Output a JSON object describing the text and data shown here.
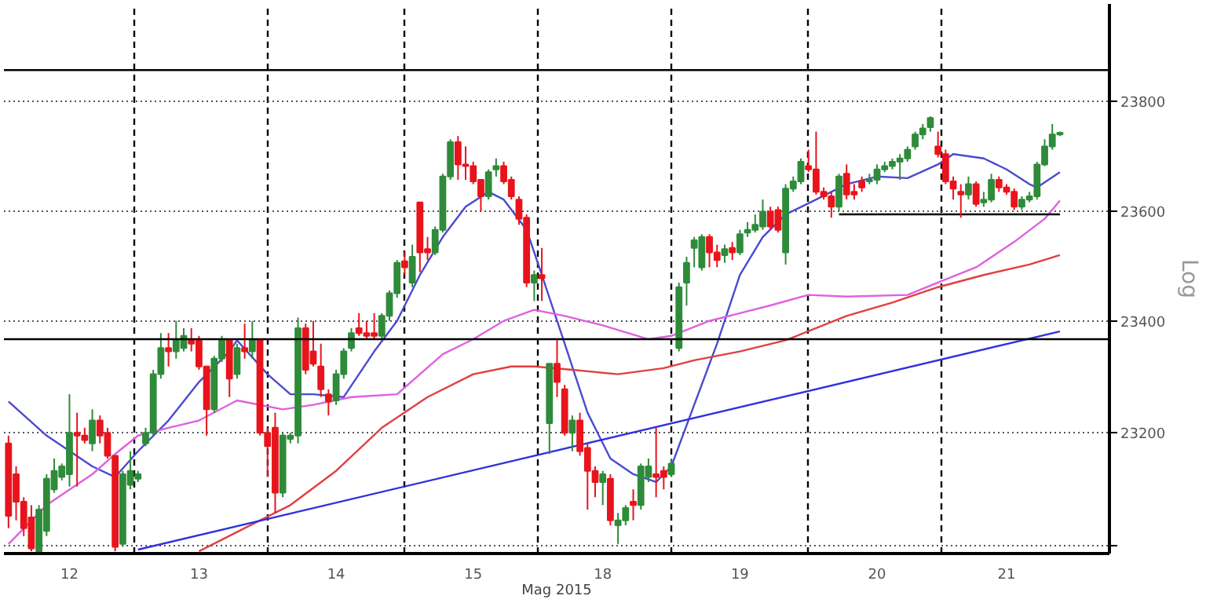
{
  "chart_data": {
    "type": "candlestick",
    "xlabel": "Mag 2015",
    "ylabel": "Log",
    "log": true,
    "grid": true,
    "ylim": [
      22985,
      23980
    ],
    "yticks": [
      {
        "value": 23000,
        "label": null
      },
      23200,
      23400,
      23600,
      23800
    ],
    "categories": [
      null,
      null,
      null,
      null,
      null,
      null,
      null,
      null,
      "12",
      null,
      null,
      null,
      null,
      null,
      null,
      null,
      null,
      null,
      null,
      null,
      null,
      null,
      null,
      null,
      null,
      "13",
      null,
      null,
      null,
      null,
      null,
      null,
      null,
      null,
      null,
      null,
      null,
      null,
      null,
      null,
      null,
      null,
      null,
      "14",
      null,
      null,
      null,
      null,
      null,
      null,
      null,
      null,
      null,
      null,
      null,
      null,
      null,
      null,
      null,
      null,
      null,
      "15",
      null,
      null,
      null,
      null,
      null,
      null,
      null,
      null,
      null,
      null,
      null,
      null,
      null,
      null,
      null,
      null,
      "18",
      null,
      null,
      null,
      null,
      null,
      null,
      null,
      null,
      null,
      null,
      null,
      null,
      null,
      null,
      null,
      null,
      null,
      "19",
      null,
      null,
      null,
      null,
      null,
      null,
      null,
      null,
      null,
      null,
      null,
      null,
      null,
      null,
      null,
      null,
      null,
      "20",
      null,
      null,
      null,
      null,
      null,
      null,
      null,
      null,
      null,
      null,
      null,
      null,
      null,
      null,
      null,
      null,
      "21",
      null,
      null,
      null,
      null,
      null,
      null,
      null
    ],
    "colors": [
      "#e8141c",
      "#e8141c",
      "#e8141c",
      "#e8141c",
      "#2e8b3a",
      "#2e8b3a",
      "#2e8b3a",
      "#2e8b3a",
      "#2e8b3a",
      "#e8141c",
      "#e8141c",
      "#2e8b3a",
      "#e8141c",
      "#e8141c",
      "#e8141c",
      "#2e8b3a",
      "#2e8b3a",
      "#2e8b3a",
      "#2e8b3a",
      "#2e8b3a",
      "#2e8b3a",
      "#e8141c",
      "#2e8b3a",
      "#2e8b3a",
      "#e8141c",
      "#e8141c",
      "#e8141c",
      "#2e8b3a",
      "#2e8b3a",
      "#e8141c",
      "#2e8b3a",
      "#e8141c",
      "#2e8b3a",
      "#e8141c",
      "#e8141c",
      "#e8141c",
      "#2e8b3a",
      "#2e8b3a",
      "#2e8b3a",
      "#e8141c",
      "#e8141c",
      "#e8141c",
      "#e8141c",
      "#2e8b3a",
      "#2e8b3a",
      "#2e8b3a",
      "#e8141c",
      "#e8141c",
      "#e8141c",
      "#2e8b3a",
      "#2e8b3a",
      "#2e8b3a",
      "#e8141c",
      "#2e8b3a",
      "#e8141c",
      "#e8141c",
      "#2e8b3a",
      "#2e8b3a",
      "#2e8b3a",
      "#e8141c",
      "#e8141c",
      "#e8141c",
      "#e8141c",
      "#2e8b3a",
      "#2e8b3a",
      "#e8141c",
      "#e8141c",
      "#e8141c",
      "#e8141c",
      "#2e8b3a",
      "#e8141c",
      "#2e8b3a",
      "#e8141c",
      "#e8141c",
      "#2e8b3a",
      "#e8141c",
      "#e8141c",
      "#e8141c",
      "#2e8b3a",
      "#e8141c",
      "#2e8b3a",
      "#2e8b3a",
      "#e8141c",
      "#2e8b3a",
      "#2e8b3a",
      "#e8141c",
      "#e8141c",
      "#2e8b3a",
      "#2e8b3a",
      "#2e8b3a",
      "#2e8b3a",
      "#2e8b3a",
      "#e8141c",
      "#e8141c",
      "#2e8b3a",
      "#e8141c",
      "#2e8b3a",
      "#2e8b3a",
      "#2e8b3a",
      "#2e8b3a",
      "#e8141c",
      "#e8141c",
      "#2e8b3a",
      "#2e8b3a",
      "#2e8b3a",
      "#e8141c",
      "#e8141c",
      "#e8141c",
      "#e8141c",
      "#2e8b3a",
      "#e8141c",
      "#e8141c",
      "#e8141c",
      "#2e8b3a",
      "#2e8b3a",
      "#2e8b3a",
      "#2e8b3a",
      "#2e8b3a",
      "#2e8b3a",
      "#2e8b3a",
      "#2e8b3a",
      "#2e8b3a",
      "#e8141c",
      "#e8141c",
      "#e8141c",
      "#e8141c",
      "#2e8b3a",
      "#e8141c",
      "#2e8b3a",
      "#2e8b3a",
      "#e8141c",
      "#e8141c",
      "#e8141c",
      "#2e8b3a",
      "#2e8b3a",
      "#2e8b3a",
      "#2e8b3a",
      "#2e8b3a",
      "#2e8b3a"
    ],
    "ohlc": [
      [
        23181,
        23195,
        23030,
        23052
      ],
      [
        23126,
        23140,
        23044,
        23077
      ],
      [
        23077,
        23085,
        23016,
        23030
      ],
      [
        23049,
        23071,
        22989,
        22994
      ],
      [
        22989,
        23071,
        22989,
        23063
      ],
      [
        23025,
        23126,
        23016,
        23118
      ],
      [
        23099,
        23154,
        23093,
        23132
      ],
      [
        23121,
        23145,
        23115,
        23140
      ],
      [
        23126,
        23269,
        23104,
        23200
      ],
      [
        23200,
        23236,
        23104,
        23195
      ],
      [
        23195,
        23209,
        23181,
        23187
      ],
      [
        23181,
        23242,
        23167,
        23222
      ],
      [
        23222,
        23231,
        23181,
        23195
      ],
      [
        23200,
        23209,
        23154,
        23159
      ],
      [
        23159,
        23159,
        22989,
        22997
      ],
      [
        23002,
        23132,
        22997,
        23126
      ],
      [
        23107,
        23167,
        23099,
        23132
      ],
      [
        23118,
        23132,
        23112,
        23126
      ],
      [
        23181,
        23209,
        23176,
        23200
      ],
      [
        23200,
        23313,
        23195,
        23305
      ],
      [
        23305,
        23379,
        23297,
        23352
      ],
      [
        23352,
        23379,
        23319,
        23346
      ],
      [
        23346,
        23401,
        23333,
        23366
      ],
      [
        23352,
        23388,
        23346,
        23374
      ],
      [
        23368,
        23388,
        23346,
        23360
      ],
      [
        23368,
        23374,
        23313,
        23319
      ],
      [
        23319,
        23319,
        23195,
        23242
      ],
      [
        23242,
        23338,
        23236,
        23333
      ],
      [
        23333,
        23374,
        23327,
        23368
      ],
      [
        23368,
        23368,
        23264,
        23297
      ],
      [
        23305,
        23360,
        23297,
        23352
      ],
      [
        23352,
        23396,
        23333,
        23346
      ],
      [
        23346,
        23401,
        23333,
        23368
      ],
      [
        23368,
        23368,
        23195,
        23200
      ],
      [
        23200,
        23209,
        23121,
        23176
      ],
      [
        23209,
        23236,
        23057,
        23093
      ],
      [
        23093,
        23200,
        23085,
        23195
      ],
      [
        23189,
        23200,
        23181,
        23195
      ],
      [
        23195,
        23407,
        23181,
        23388
      ],
      [
        23388,
        23396,
        23305,
        23313
      ],
      [
        23346,
        23401,
        23319,
        23324
      ],
      [
        23319,
        23360,
        23264,
        23278
      ],
      [
        23269,
        23278,
        23231,
        23256
      ],
      [
        23258,
        23313,
        23250,
        23305
      ],
      [
        23305,
        23352,
        23297,
        23346
      ],
      [
        23352,
        23388,
        23346,
        23379
      ],
      [
        23388,
        23415,
        23374,
        23379
      ],
      [
        23379,
        23401,
        23368,
        23374
      ],
      [
        23379,
        23415,
        23368,
        23374
      ],
      [
        23374,
        23415,
        23368,
        23410
      ],
      [
        23410,
        23456,
        23401,
        23451
      ],
      [
        23451,
        23511,
        23443,
        23506
      ],
      [
        23509,
        23525,
        23484,
        23498
      ],
      [
        23470,
        23539,
        23462,
        23517
      ],
      [
        23616,
        23616,
        23489,
        23525
      ],
      [
        23531,
        23553,
        23511,
        23525
      ],
      [
        23525,
        23572,
        23520,
        23566
      ],
      [
        23566,
        23668,
        23561,
        23663
      ],
      [
        23663,
        23731,
        23657,
        23726
      ],
      [
        23726,
        23737,
        23657,
        23685
      ],
      [
        23685,
        23718,
        23657,
        23682
      ],
      [
        23682,
        23690,
        23649,
        23654
      ],
      [
        23657,
        23657,
        23599,
        23627
      ],
      [
        23627,
        23676,
        23621,
        23671
      ],
      [
        23676,
        23696,
        23663,
        23682
      ],
      [
        23682,
        23690,
        23649,
        23654
      ],
      [
        23657,
        23663,
        23621,
        23627
      ],
      [
        23621,
        23627,
        23575,
        23586
      ],
      [
        23588,
        23594,
        23462,
        23470
      ],
      [
        23470,
        23492,
        23437,
        23484
      ],
      [
        23484,
        23533,
        23437,
        23478
      ],
      [
        23217,
        23324,
        23162,
        23324
      ],
      [
        23324,
        23368,
        23264,
        23291
      ],
      [
        23278,
        23286,
        23195,
        23200
      ],
      [
        23200,
        23231,
        23167,
        23222
      ],
      [
        23222,
        23236,
        23159,
        23167
      ],
      [
        23173,
        23181,
        23063,
        23132
      ],
      [
        23132,
        23140,
        23085,
        23112
      ],
      [
        23112,
        23132,
        23071,
        23126
      ],
      [
        23118,
        23126,
        23035,
        23044
      ],
      [
        23035,
        23057,
        23002,
        23044
      ],
      [
        23044,
        23071,
        23035,
        23066
      ],
      [
        23077,
        23099,
        23044,
        23071
      ],
      [
        23071,
        23145,
        23063,
        23140
      ],
      [
        23121,
        23154,
        23112,
        23140
      ],
      [
        23126,
        23209,
        23085,
        23121
      ],
      [
        23132,
        23140,
        23099,
        23121
      ],
      [
        23126,
        23154,
        23121,
        23145
      ],
      [
        23352,
        23470,
        23346,
        23462
      ],
      [
        23470,
        23517,
        23429,
        23506
      ],
      [
        23533,
        23553,
        23498,
        23547
      ],
      [
        23498,
        23558,
        23492,
        23553
      ],
      [
        23553,
        23558,
        23498,
        23525
      ],
      [
        23525,
        23539,
        23498,
        23511
      ],
      [
        23520,
        23539,
        23506,
        23531
      ],
      [
        23533,
        23544,
        23511,
        23525
      ],
      [
        23525,
        23566,
        23520,
        23558
      ],
      [
        23561,
        23580,
        23553,
        23566
      ],
      [
        23566,
        23594,
        23561,
        23575
      ],
      [
        23572,
        23621,
        23566,
        23599
      ],
      [
        23599,
        23608,
        23566,
        23572
      ],
      [
        23602,
        23608,
        23561,
        23566
      ],
      [
        23525,
        23649,
        23503,
        23641
      ],
      [
        23641,
        23663,
        23635,
        23654
      ],
      [
        23654,
        23696,
        23649,
        23690
      ],
      [
        23682,
        23712,
        23671,
        23676
      ],
      [
        23676,
        23745,
        23630,
        23635
      ],
      [
        23635,
        23643,
        23621,
        23627
      ],
      [
        23627,
        23635,
        23588,
        23608
      ],
      [
        23608,
        23668,
        23599,
        23663
      ],
      [
        23668,
        23685,
        23621,
        23630
      ],
      [
        23635,
        23649,
        23621,
        23630
      ],
      [
        23654,
        23663,
        23635,
        23643
      ],
      [
        23654,
        23668,
        23649,
        23657
      ],
      [
        23657,
        23685,
        23649,
        23676
      ],
      [
        23676,
        23690,
        23671,
        23682
      ],
      [
        23682,
        23696,
        23676,
        23690
      ],
      [
        23690,
        23704,
        23657,
        23696
      ],
      [
        23696,
        23718,
        23690,
        23712
      ],
      [
        23718,
        23745,
        23712,
        23740
      ],
      [
        23740,
        23759,
        23731,
        23751
      ],
      [
        23753,
        23773,
        23745,
        23770
      ],
      [
        23718,
        23745,
        23698,
        23704
      ],
      [
        23704,
        23712,
        23649,
        23654
      ],
      [
        23654,
        23663,
        23621,
        23641
      ],
      [
        23635,
        23649,
        23588,
        23630
      ],
      [
        23630,
        23663,
        23621,
        23649
      ],
      [
        23649,
        23654,
        23608,
        23613
      ],
      [
        23616,
        23635,
        23608,
        23621
      ],
      [
        23621,
        23668,
        23616,
        23657
      ],
      [
        23657,
        23663,
        23635,
        23643
      ],
      [
        23643,
        23649,
        23630,
        23635
      ],
      [
        23635,
        23641,
        23602,
        23608
      ],
      [
        23608,
        23627,
        23602,
        23621
      ],
      [
        23621,
        23635,
        23616,
        23627
      ],
      [
        23627,
        23690,
        23621,
        23685
      ],
      [
        23685,
        23731,
        23682,
        23718
      ],
      [
        23718,
        23759,
        23712,
        23740
      ],
      [
        23740,
        23745,
        23737,
        23743
      ]
    ],
    "series": [
      {
        "type": "line",
        "color": "#4a4ad0",
        "values": [
          23256,
          null,
          null,
          null,
          null,
          23195,
          null,
          null,
          null,
          null,
          null,
          23140,
          null,
          null,
          23121,
          null,
          null,
          23167,
          null,
          null,
          null,
          23222,
          null,
          null,
          null,
          23291,
          null,
          null,
          null,
          23346,
          23366,
          null,
          null,
          null,
          23305,
          null,
          null,
          23269,
          null,
          null,
          23269,
          null,
          null,
          null,
          23264,
          null,
          null,
          null,
          23346,
          null,
          null,
          23401,
          null,
          null,
          23484,
          null,
          null,
          23553,
          null,
          null,
          23608,
          null,
          null,
          23635,
          null,
          23621,
          null,
          null,
          23566,
          null,
          23484,
          null,
          null,
          23360,
          null,
          null,
          23236,
          null,
          null,
          23154,
          null,
          null,
          23126,
          null,
          null,
          23112,
          null,
          23140,
          null,
          null,
          23250,
          null,
          null,
          23360,
          null,
          null,
          23484,
          null,
          null,
          23553,
          null,
          null,
          23594,
          null,
          null,
          null,
          23621,
          null,
          null,
          null,
          23649,
          null,
          null,
          null,
          23663,
          null,
          null,
          null,
          23660,
          null,
          null,
          null,
          23685,
          null,
          23704,
          null,
          null,
          null,
          23696,
          null,
          null,
          23676,
          null,
          null,
          23649,
          23643,
          null,
          null,
          23671
        ]
      },
      {
        "type": "line",
        "color": "#e060e0",
        "values": [
          23002,
          null,
          null,
          null,
          null,
          23071,
          null,
          null,
          null,
          null,
          null,
          23126,
          null,
          null,
          23162,
          null,
          null,
          23195,
          null,
          null,
          null,
          23209,
          null,
          null,
          null,
          23222,
          null,
          null,
          null,
          null,
          23258,
          null,
          null,
          null,
          null,
          null,
          23242,
          null,
          null,
          null,
          23250,
          null,
          null,
          null,
          null,
          23264,
          null,
          null,
          null,
          null,
          null,
          23269,
          null,
          null,
          null,
          null,
          null,
          23341,
          null,
          null,
          null,
          23368,
          null,
          null,
          null,
          23401,
          null,
          null,
          null,
          23421,
          null,
          null,
          null,
          23410,
          null,
          null,
          null,
          null,
          23393,
          null,
          null,
          null,
          null,
          null,
          23368,
          null,
          null,
          23374,
          null,
          null,
          null,
          null,
          23401,
          null,
          null,
          null,
          23415,
          null,
          null,
          null,
          23429,
          null,
          null,
          null,
          null,
          23448,
          null,
          null,
          null,
          null,
          23445,
          null,
          null,
          null,
          null,
          null,
          null,
          null,
          23448,
          null,
          null,
          null,
          null,
          23476,
          null,
          null,
          null,
          23498,
          null,
          null,
          null,
          null,
          23544,
          null,
          null,
          null,
          23586,
          null,
          23619
        ]
      },
      {
        "type": "line",
        "color": "#e04040",
        "values": [
          null,
          null,
          null,
          null,
          null,
          null,
          null,
          null,
          null,
          null,
          null,
          null,
          null,
          null,
          null,
          null,
          null,
          null,
          null,
          null,
          null,
          null,
          null,
          null,
          null,
          22989,
          null,
          null,
          null,
          null,
          null,
          23030,
          null,
          null,
          null,
          null,
          null,
          23071,
          null,
          null,
          null,
          null,
          null,
          23132,
          null,
          null,
          null,
          null,
          null,
          23209,
          null,
          null,
          null,
          null,
          null,
          23264,
          null,
          null,
          null,
          null,
          null,
          23305,
          null,
          null,
          null,
          null,
          23319,
          null,
          null,
          23319,
          null,
          null,
          null,
          null,
          23313,
          null,
          null,
          null,
          null,
          null,
          23305,
          null,
          null,
          null,
          null,
          null,
          23316,
          null,
          null,
          null,
          23330,
          null,
          null,
          null,
          null,
          null,
          23346,
          null,
          null,
          null,
          null,
          null,
          23366,
          null,
          null,
          null,
          23388,
          null,
          null,
          null,
          23410,
          null,
          null,
          null,
          null,
          null,
          23434,
          null,
          null,
          null,
          null,
          null,
          23462,
          null,
          null,
          null,
          null,
          null,
          23484,
          null,
          null,
          null,
          null,
          null,
          23503,
          null,
          null,
          null,
          23520
        ]
      },
      {
        "type": "line",
        "color": "#3030e0",
        "values": [
          null,
          null,
          null,
          null,
          null,
          null,
          null,
          null,
          null,
          null,
          null,
          null,
          null,
          null,
          null,
          null,
          null,
          22992,
          null,
          null,
          null,
          null,
          null,
          null,
          null,
          null,
          null,
          null,
          null,
          null,
          null,
          null,
          null,
          null,
          null,
          null,
          null,
          null,
          null,
          null,
          null,
          null,
          null,
          null,
          null,
          null,
          null,
          null,
          null,
          null,
          null,
          null,
          null,
          null,
          null,
          null,
          null,
          null,
          null,
          null,
          null,
          null,
          null,
          null,
          null,
          null,
          null,
          null,
          null,
          null,
          null,
          null,
          null,
          null,
          null,
          null,
          null,
          null,
          null,
          null,
          null,
          null,
          null,
          null,
          null,
          null,
          null,
          null,
          null,
          null,
          null,
          null,
          null,
          null,
          null,
          null,
          null,
          null,
          null,
          null,
          null,
          null,
          null,
          null,
          null,
          null,
          null,
          null,
          null,
          null,
          null,
          null,
          null,
          null,
          null,
          null,
          null,
          null,
          null,
          null,
          null,
          null,
          null,
          null,
          null,
          null,
          null,
          null,
          null,
          null,
          null,
          null,
          null,
          null,
          null,
          null,
          null,
          null,
          23382
        ]
      },
      {
        "type": "line",
        "color": "#000000",
        "values": [
          null,
          null,
          null,
          null,
          null,
          null,
          null,
          null,
          null,
          null,
          null,
          null,
          null,
          null,
          null,
          null,
          null,
          null,
          null,
          null,
          null,
          null,
          null,
          null,
          null,
          null,
          null,
          null,
          null,
          null,
          null,
          null,
          null,
          null,
          null,
          null,
          null,
          null,
          null,
          null,
          null,
          null,
          null,
          null,
          null,
          null,
          null,
          null,
          null,
          null,
          null,
          null,
          null,
          null,
          null,
          null,
          null,
          null,
          null,
          null,
          null,
          null,
          null,
          null,
          null,
          null,
          null,
          null,
          null,
          null,
          null,
          null,
          null,
          null,
          null,
          null,
          null,
          null,
          null,
          null,
          null,
          null,
          null,
          null,
          null,
          null,
          null,
          null,
          null,
          null,
          null,
          null,
          null,
          null,
          null,
          null,
          null,
          null,
          null,
          null,
          null,
          null,
          null,
          null,
          null,
          null,
          null,
          null,
          null,
          23594,
          null,
          null,
          null,
          null,
          null,
          null,
          null,
          null,
          null,
          null,
          null,
          null,
          null,
          null,
          null,
          null,
          null,
          null,
          null,
          null,
          null,
          null,
          null,
          null,
          null,
          null,
          null,
          null,
          23594
        ]
      }
    ],
    "ref_lines": [
      {
        "axis": "y",
        "value": 23858,
        "color": "#000000",
        "line_style": "solid"
      },
      {
        "axis": "y",
        "value": 23368,
        "color": "#000000",
        "line_style": "solid"
      }
    ]
  }
}
